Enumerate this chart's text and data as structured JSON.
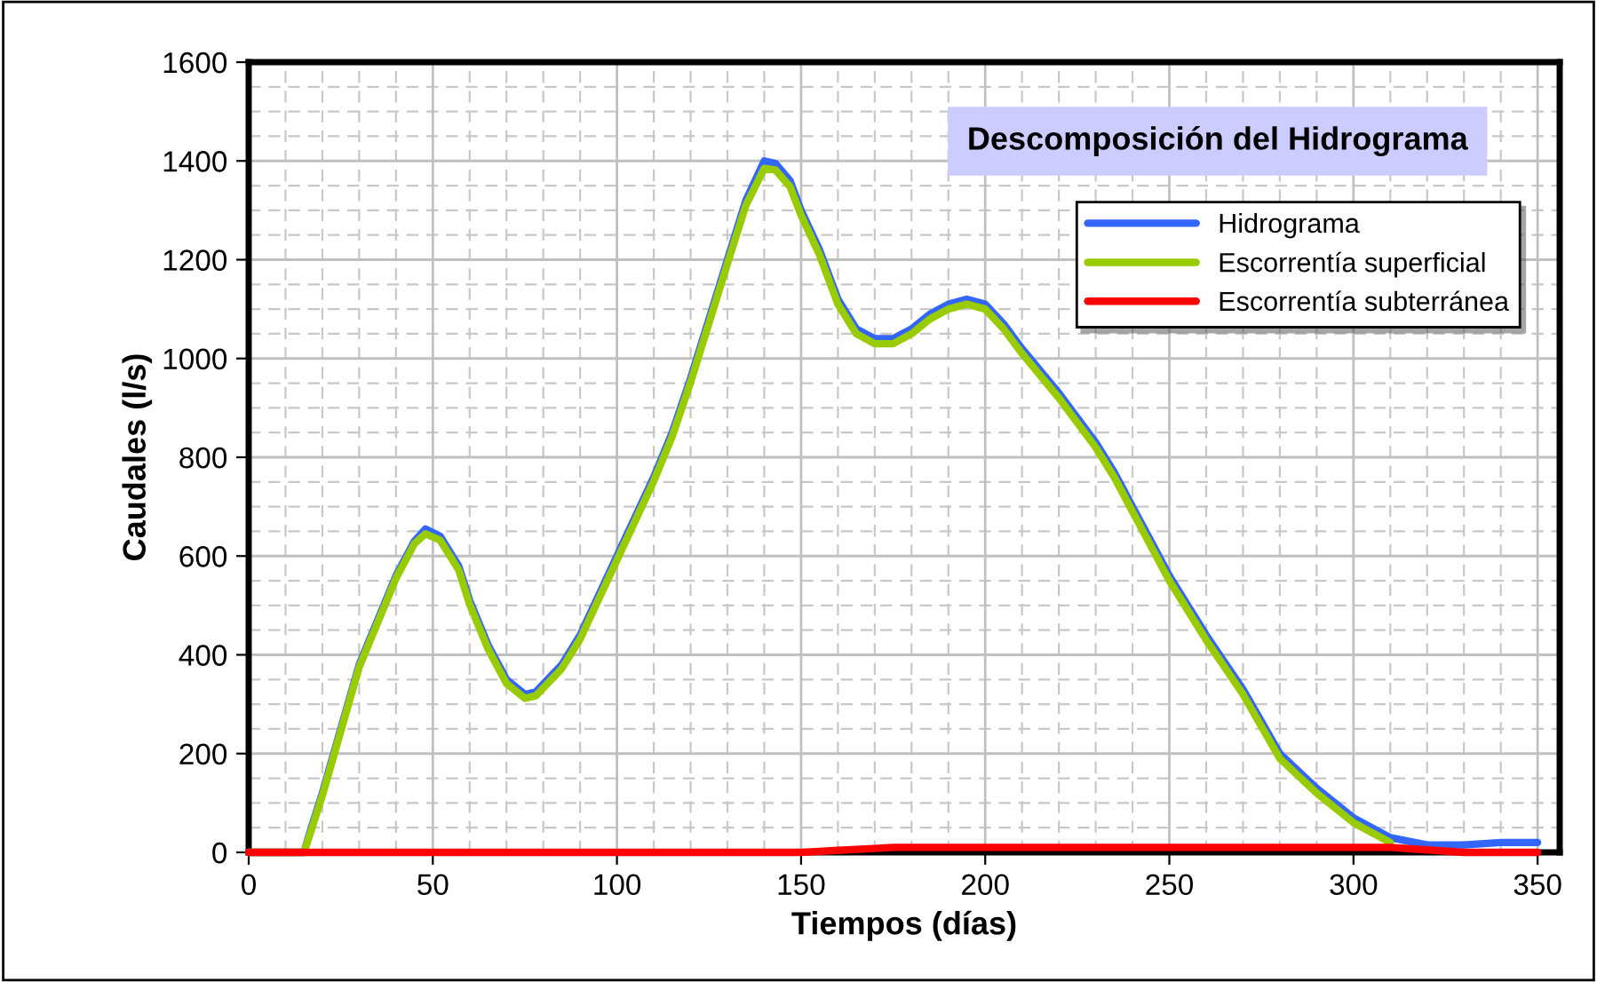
{
  "chart_data": {
    "type": "line",
    "title": "Descomposición del Hidrograma",
    "xlabel": "Tiempos (días)",
    "ylabel": "Caudales (l/s)",
    "xlim": [
      0,
      356
    ],
    "xticks": [
      0,
      50,
      100,
      150,
      200,
      250,
      300,
      350
    ],
    "ylim": [
      0,
      1600
    ],
    "yticks": [
      0,
      200,
      400,
      600,
      800,
      1000,
      1200,
      1400,
      1600
    ],
    "grid": true,
    "legend": "top right",
    "marker": "none",
    "line_style": "solid",
    "x": [
      0,
      15,
      17,
      20,
      25,
      30,
      35,
      40,
      45,
      48,
      52,
      57,
      60,
      65,
      70,
      75,
      78,
      85,
      90,
      100,
      110,
      115,
      120,
      125,
      130,
      135,
      140,
      143,
      147,
      150,
      155,
      160,
      165,
      170,
      175,
      180,
      185,
      190,
      195,
      200,
      205,
      210,
      220,
      230,
      235,
      240,
      245,
      250,
      260,
      270,
      280,
      290,
      300,
      310,
      320,
      330,
      340,
      350
    ],
    "series": [
      {
        "name": "Hidrograma",
        "color": "#3366ff",
        "values": [
          0,
          0,
          50,
          120,
          250,
          380,
          470,
          560,
          630,
          655,
          640,
          580,
          510,
          420,
          350,
          320,
          325,
          380,
          440,
          600,
          760,
          850,
          960,
          1080,
          1200,
          1320,
          1400,
          1395,
          1360,
          1300,
          1220,
          1120,
          1060,
          1040,
          1040,
          1060,
          1090,
          1110,
          1120,
          1110,
          1070,
          1020,
          930,
          830,
          770,
          700,
          630,
          560,
          440,
          330,
          200,
          130,
          70,
          30,
          15,
          15,
          20,
          20
        ]
      },
      {
        "name": "Escorrentía superficial",
        "color": "#99cc00",
        "values": [
          0,
          0,
          45,
          115,
          245,
          375,
          465,
          555,
          625,
          645,
          632,
          572,
          502,
          412,
          342,
          312,
          317,
          372,
          432,
          592,
          752,
          842,
          952,
          1072,
          1192,
          1310,
          1385,
          1382,
          1348,
          1290,
          1210,
          1110,
          1050,
          1030,
          1030,
          1050,
          1080,
          1100,
          1110,
          1100,
          1060,
          1010,
          920,
          820,
          760,
          690,
          620,
          550,
          430,
          320,
          190,
          120,
          60,
          20,
          null,
          null,
          null,
          null
        ]
      },
      {
        "name": "Escorrentía subterránea",
        "color": "#ff0000",
        "values": [
          0,
          0,
          0,
          0,
          0,
          0,
          0,
          0,
          0,
          0,
          0,
          0,
          0,
          0,
          0,
          0,
          0,
          0,
          0,
          0,
          0,
          0,
          0,
          0,
          0,
          0,
          0,
          0,
          0,
          0,
          2,
          4,
          6,
          8,
          10,
          10,
          10,
          10,
          10,
          10,
          10,
          10,
          10,
          10,
          10,
          10,
          10,
          10,
          10,
          10,
          10,
          10,
          10,
          10,
          5,
          0,
          0,
          0
        ]
      }
    ]
  }
}
